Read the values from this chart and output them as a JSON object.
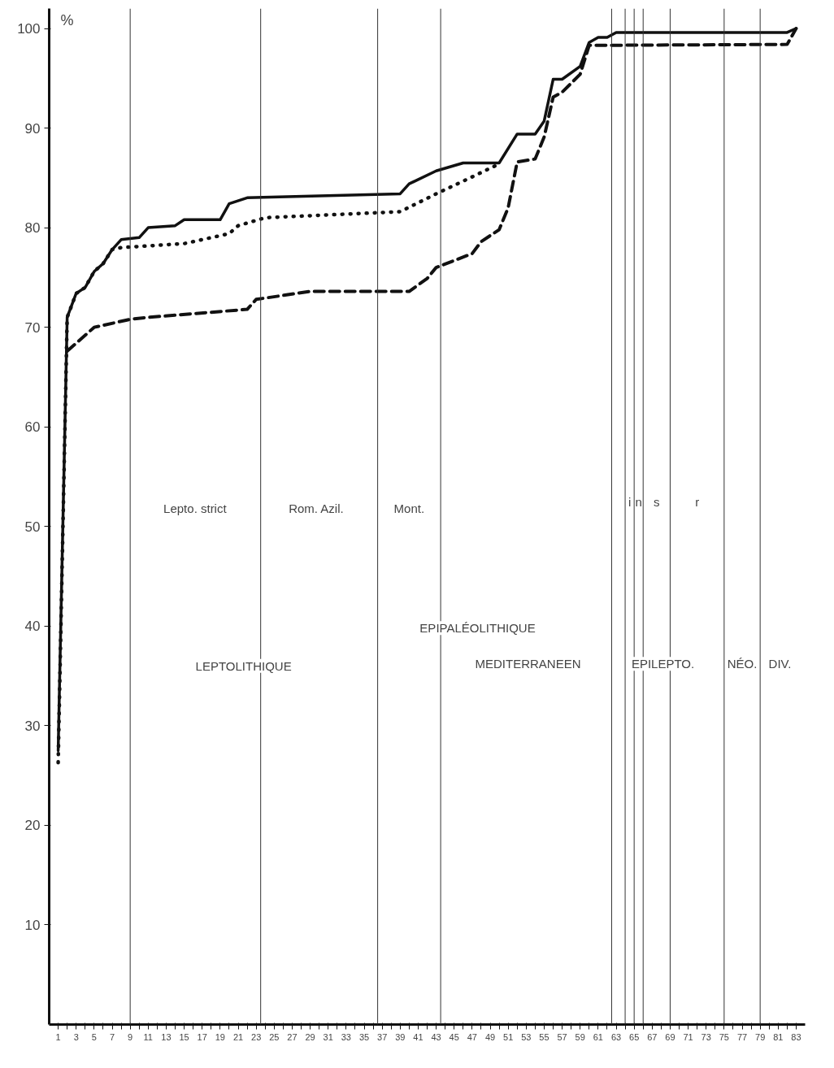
{
  "chart_data": {
    "type": "line",
    "ylabel": "%",
    "xlim": [
      0,
      84
    ],
    "ylim": [
      0,
      102
    ],
    "xticks": [
      1,
      {
        "value": 2,
        "label": null
      },
      3,
      {
        "value": 4,
        "label": null
      },
      5,
      {
        "value": 6,
        "label": null
      },
      7,
      {
        "value": 8,
        "label": null
      },
      9,
      {
        "value": 10,
        "label": null
      },
      11,
      {
        "value": 12,
        "label": null
      },
      13,
      {
        "value": 14,
        "label": null
      },
      15,
      {
        "value": 16,
        "label": null
      },
      17,
      {
        "value": 18,
        "label": null
      },
      19,
      {
        "value": 20,
        "label": null
      },
      21,
      {
        "value": 22,
        "label": null
      },
      23,
      {
        "value": 24,
        "label": null
      },
      25,
      {
        "value": 26,
        "label": null
      },
      27,
      {
        "value": 28,
        "label": null
      },
      29,
      {
        "value": 30,
        "label": null
      },
      31,
      {
        "value": 32,
        "label": null
      },
      33,
      {
        "value": 34,
        "label": null
      },
      35,
      {
        "value": 36,
        "label": null
      },
      37,
      {
        "value": 38,
        "label": null
      },
      39,
      {
        "value": 40,
        "label": null
      },
      41,
      {
        "value": 42,
        "label": null
      },
      43,
      {
        "value": 44,
        "label": null
      },
      45,
      {
        "value": 46,
        "label": null
      },
      47,
      {
        "value": 48,
        "label": null
      },
      49,
      {
        "value": 50,
        "label": null
      },
      51,
      {
        "value": 52,
        "label": null
      },
      53,
      {
        "value": 54,
        "label": null
      },
      55,
      {
        "value": 56,
        "label": null
      },
      57,
      {
        "value": 58,
        "label": null
      },
      59,
      {
        "value": 60,
        "label": null
      },
      61,
      {
        "value": 62,
        "label": null
      },
      63,
      {
        "value": 64,
        "label": null
      },
      65,
      {
        "value": 66,
        "label": null
      },
      67,
      {
        "value": 68,
        "label": null
      },
      69,
      {
        "value": 70,
        "label": null
      },
      71,
      {
        "value": 72,
        "label": null
      },
      73,
      {
        "value": 74,
        "label": null
      },
      75,
      {
        "value": 76,
        "label": null
      },
      77,
      {
        "value": 78,
        "label": null
      },
      79,
      {
        "value": 80,
        "label": null
      },
      81,
      {
        "value": 82,
        "label": null
      },
      83
    ],
    "yticks": [
      10,
      20,
      30,
      40,
      50,
      60,
      70,
      80,
      90,
      100
    ],
    "grid": false,
    "marker": "none",
    "series": [
      {
        "color": "#111111",
        "line_style": "solid",
        "x": [
          1,
          2,
          3,
          4,
          5,
          6,
          7,
          8,
          10,
          11,
          14,
          15,
          19,
          20,
          22,
          39,
          40,
          43,
          46,
          50,
          52,
          54,
          55,
          56,
          57,
          59,
          60,
          61,
          62,
          63,
          82,
          83
        ],
        "values": [
          27.5,
          71,
          73.4,
          74,
          75.6,
          76.4,
          77.8,
          78.8,
          79,
          80,
          80.2,
          80.8,
          80.8,
          82.4,
          83,
          83.4,
          84.4,
          85.7,
          86.5,
          86.5,
          89.4,
          89.4,
          90.7,
          94.9,
          94.9,
          96.2,
          98.6,
          99.1,
          99.1,
          99.6,
          99.6,
          100
        ]
      },
      {
        "color": "#111111",
        "line_style": "dotted",
        "x": [
          1,
          2,
          3,
          4,
          5,
          6,
          7,
          8,
          15,
          20,
          21,
          24,
          39,
          43,
          47,
          50
        ],
        "values": [
          26.3,
          71,
          73.4,
          74,
          75.6,
          76.4,
          77.8,
          78,
          78.4,
          79.4,
          80.2,
          81,
          81.6,
          83.4,
          85.1,
          86.4
        ]
      },
      {
        "color": "#111111",
        "line_style": "dashed",
        "x": [
          2,
          5,
          9,
          11,
          22,
          23,
          29,
          40,
          42,
          43,
          47,
          48,
          50,
          51,
          52,
          54,
          55,
          56,
          57,
          59,
          60,
          82,
          83
        ],
        "values": [
          67.6,
          70,
          70.8,
          71,
          71.8,
          72.8,
          73.6,
          73.6,
          74.9,
          76,
          77.4,
          78.6,
          79.8,
          82,
          86.6,
          86.9,
          89.1,
          93.1,
          93.6,
          95.4,
          98.3,
          98.4,
          100
        ]
      }
    ],
    "ref_lines": [
      {
        "axis": "x",
        "value": 9
      },
      {
        "axis": "x",
        "value": 23.5
      },
      {
        "axis": "x",
        "value": 36.5
      },
      {
        "axis": "x",
        "value": 43.5
      },
      {
        "axis": "x",
        "value": 62.5
      },
      {
        "axis": "x",
        "value": 64
      },
      {
        "axis": "x",
        "value": 65
      },
      {
        "axis": "x",
        "value": 66
      },
      {
        "axis": "x",
        "value": 69
      },
      {
        "axis": "x",
        "value": 75
      },
      {
        "axis": "x",
        "value": 79
      }
    ],
    "annotations": [
      "Lepto. strict",
      "Rom. Azil.",
      "Mont.",
      "i",
      "n",
      "s",
      "r",
      "LEPTOLITHIQUE",
      "EPIPALÉOLITHIQUE",
      "MEDITERRANEEN",
      "EPILEPTO.",
      "NÉO.",
      "DIV."
    ]
  }
}
